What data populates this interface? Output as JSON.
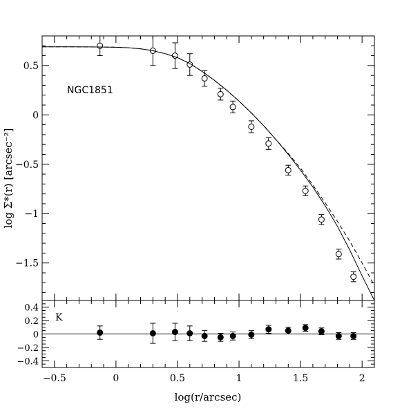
{
  "chart_data": [
    {
      "type": "scatter",
      "annotation": "NGC1851",
      "xlabel": "",
      "ylabel": "log Σ*(r) [arcsec⁻²]",
      "xlim": [
        -0.6,
        2.1
      ],
      "ylim": [
        -1.88,
        0.8
      ],
      "x_ticks": [
        -0.5,
        0,
        0.5,
        1,
        1.5,
        2
      ],
      "y_ticks": [
        0.5,
        0,
        -0.5,
        -1,
        -1.5
      ],
      "y_tick_labels": [
        "0.5",
        "0",
        "−0.5",
        "−1",
        "−1.5"
      ],
      "series": [
        {
          "marker": "open-circle",
          "x": [
            -0.13,
            0.3,
            0.48,
            0.6,
            0.72,
            0.85,
            0.95,
            1.1,
            1.24,
            1.4,
            1.54,
            1.67,
            1.81,
            1.93
          ],
          "y": [
            0.7,
            0.65,
            0.6,
            0.51,
            0.37,
            0.21,
            0.08,
            -0.12,
            -0.29,
            -0.56,
            -0.77,
            -1.06,
            -1.41,
            -1.64
          ],
          "yerr": [
            0.1,
            0.15,
            0.13,
            0.11,
            0.08,
            0.06,
            0.06,
            0.06,
            0.06,
            0.05,
            0.05,
            0.05,
            0.05,
            0.05
          ]
        },
        {
          "type": "line",
          "style": "solid",
          "x": [
            -0.6,
            -0.4,
            -0.2,
            0,
            0.1,
            0.2,
            0.3,
            0.4,
            0.5,
            0.6,
            0.7,
            0.8,
            0.9,
            1,
            1.1,
            1.2,
            1.3,
            1.4,
            1.5,
            1.6,
            1.7,
            1.8,
            1.9,
            2,
            2.1
          ],
          "y": [
            0.69,
            0.69,
            0.689,
            0.685,
            0.68,
            0.67,
            0.65,
            0.62,
            0.58,
            0.52,
            0.44,
            0.35,
            0.25,
            0.14,
            0.02,
            -0.11,
            -0.25,
            -0.4,
            -0.56,
            -0.73,
            -0.92,
            -1.13,
            -1.37,
            -1.63,
            -1.88
          ]
        },
        {
          "type": "line",
          "style": "dashed",
          "x": [
            -0.6,
            -0.4,
            -0.2,
            0,
            0.1,
            0.2,
            0.3,
            0.4,
            0.5,
            0.6,
            0.7,
            0.8,
            0.9,
            1,
            1.1,
            1.2,
            1.3,
            1.4,
            1.5,
            1.6,
            1.7,
            1.8,
            1.9,
            2,
            2.1
          ],
          "y": [
            0.69,
            0.69,
            0.689,
            0.685,
            0.68,
            0.67,
            0.65,
            0.62,
            0.58,
            0.52,
            0.44,
            0.35,
            0.25,
            0.14,
            0.02,
            -0.11,
            -0.25,
            -0.39,
            -0.54,
            -0.71,
            -0.89,
            -1.08,
            -1.28,
            -1.5,
            -1.73
          ]
        }
      ]
    },
    {
      "type": "scatter",
      "annotation": "K",
      "xlabel": "log(r/arcsec)",
      "ylabel": "",
      "xlim": [
        -0.6,
        2.1
      ],
      "ylim": [
        -0.5,
        0.5
      ],
      "x_ticks": [
        -0.5,
        0,
        0.5,
        1,
        1.5,
        2
      ],
      "x_tick_labels": [
        "−0.5",
        "0",
        "0.5",
        "1",
        "1.5",
        "2"
      ],
      "y_ticks": [
        0.4,
        0.2,
        0,
        -0.2,
        -0.4
      ],
      "y_tick_labels": [
        "0.4",
        "0.2",
        "0",
        "−0.2",
        "−0.4"
      ],
      "reference_line": 0,
      "series": [
        {
          "marker": "filled-circle",
          "x": [
            -0.13,
            0.3,
            0.48,
            0.6,
            0.72,
            0.85,
            0.95,
            1.1,
            1.24,
            1.4,
            1.54,
            1.67,
            1.81,
            1.93
          ],
          "y": [
            0.02,
            0.01,
            0.03,
            0.01,
            -0.03,
            -0.05,
            -0.03,
            -0.01,
            0.07,
            0.05,
            0.09,
            0.04,
            -0.03,
            -0.03
          ],
          "yerr": [
            0.1,
            0.15,
            0.13,
            0.11,
            0.08,
            0.06,
            0.06,
            0.06,
            0.06,
            0.05,
            0.05,
            0.05,
            0.05,
            0.05
          ]
        }
      ]
    }
  ]
}
